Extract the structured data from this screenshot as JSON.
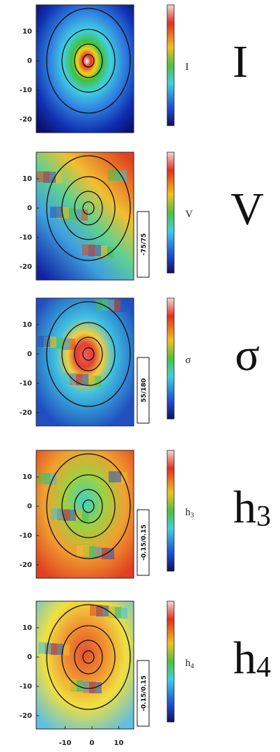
{
  "panels": [
    {
      "yticks": [
        10,
        0,
        -10,
        -20
      ],
      "colorbar_label": "I",
      "label": "I"
    },
    {
      "yticks": [
        10,
        0,
        -10,
        -20
      ],
      "colorbar_label": "V",
      "label": "V",
      "range": "-75/75"
    },
    {
      "yticks": [
        10,
        0,
        -10,
        -20
      ],
      "colorbar_label": "σ",
      "label": "σ",
      "range": "55/180"
    },
    {
      "yticks": [
        10,
        0,
        -10,
        -20
      ],
      "colorbar_label": "h",
      "colorbar_sub": "3",
      "label": "h",
      "label_sub": "3",
      "range": "-0.15/0.15"
    },
    {
      "yticks": [
        10,
        0,
        -10,
        -20
      ],
      "colorbar_label": "h",
      "colorbar_sub": "4",
      "label": "h",
      "label_sub": "4",
      "range": "-0.15/0.15"
    }
  ],
  "xticks": [
    -10,
    0,
    10
  ]
}
